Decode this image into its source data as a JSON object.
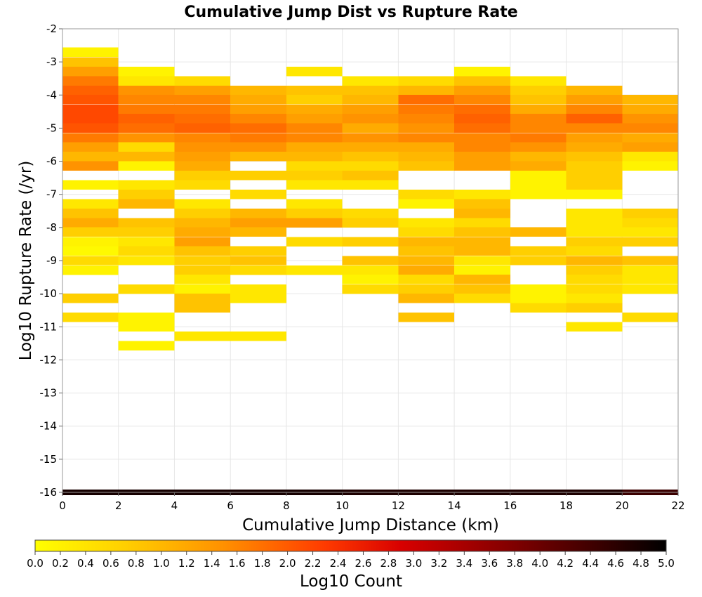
{
  "chart_data": {
    "type": "heatmap",
    "title": "Cumulative Jump Dist vs Rupture Rate",
    "xlabel": "Cumulative Jump Distance (km)",
    "ylabel": "Log10 Rupture Rate (/yr)",
    "xlim": [
      0,
      22
    ],
    "ylim": [
      -16,
      -2
    ],
    "x_ticks": [
      "0",
      "2",
      "4",
      "6",
      "8",
      "10",
      "12",
      "14",
      "16",
      "18",
      "20",
      "22"
    ],
    "y_ticks": [
      "-2",
      "-3",
      "-4",
      "-5",
      "-6",
      "-7",
      "-8",
      "-9",
      "-10",
      "-11",
      "-12",
      "-13",
      "-14",
      "-15",
      "-16"
    ],
    "x_bin_width": 2,
    "y_bin_height": 0.286,
    "grid": true,
    "colorbar": {
      "label": "Log10 Count",
      "range": [
        0,
        5
      ],
      "ticks": [
        "0.0",
        "0.2",
        "0.4",
        "0.6",
        "0.8",
        "1.0",
        "1.2",
        "1.4",
        "1.6",
        "1.8",
        "2.0",
        "2.2",
        "2.4",
        "2.6",
        "2.8",
        "3.0",
        "3.2",
        "3.4",
        "3.6",
        "3.8",
        "4.0",
        "4.2",
        "4.4",
        "4.6",
        "4.8",
        "5.0"
      ],
      "colors": [
        "#ffff00",
        "#ff9b00",
        "#ff3300",
        "#d40000",
        "#8a0000",
        "#3d0000",
        "#000000"
      ],
      "placement": "bottom"
    },
    "columns": [
      {
        "x": 0,
        "cells": [
          {
            "y": -2.71,
            "v": 0.1
          },
          {
            "y": -3.0,
            "v": 0.5
          },
          {
            "y": -3.29,
            "v": 0.8
          },
          {
            "y": -3.57,
            "v": 1.1
          },
          {
            "y": -3.86,
            "v": 1.3
          },
          {
            "y": -4.14,
            "v": 1.4
          },
          {
            "y": -4.43,
            "v": 1.5
          },
          {
            "y": -4.71,
            "v": 1.5
          },
          {
            "y": -5.0,
            "v": 1.4
          },
          {
            "y": -5.29,
            "v": 1.1
          },
          {
            "y": -5.57,
            "v": 0.8
          },
          {
            "y": -5.86,
            "v": 0.6
          },
          {
            "y": -6.14,
            "v": 0.9
          },
          {
            "y": -6.71,
            "v": 0.1
          },
          {
            "y": -7.29,
            "v": 0.2
          },
          {
            "y": -7.57,
            "v": 0.5
          },
          {
            "y": -7.86,
            "v": 0.7
          },
          {
            "y": -8.14,
            "v": 0.4
          },
          {
            "y": -8.43,
            "v": 0.1
          },
          {
            "y": -8.71,
            "v": 0.05
          },
          {
            "y": -9.0,
            "v": 0.3
          },
          {
            "y": -9.29,
            "v": 0.1
          },
          {
            "y": -10.14,
            "v": 0.4
          },
          {
            "y": -10.71,
            "v": 0.3
          }
        ]
      },
      {
        "x": 2,
        "cells": [
          {
            "y": -3.29,
            "v": 0.1
          },
          {
            "y": -3.57,
            "v": 0.2
          },
          {
            "y": -3.86,
            "v": 0.9
          },
          {
            "y": -4.14,
            "v": 1.0
          },
          {
            "y": -4.43,
            "v": 1.1
          },
          {
            "y": -4.71,
            "v": 1.3
          },
          {
            "y": -5.0,
            "v": 1.2
          },
          {
            "y": -5.29,
            "v": 0.9
          },
          {
            "y": -5.57,
            "v": 0.3
          },
          {
            "y": -5.86,
            "v": 0.6
          },
          {
            "y": -6.14,
            "v": 0.1
          },
          {
            "y": -6.71,
            "v": 0.2
          },
          {
            "y": -7.0,
            "v": 0.4
          },
          {
            "y": -7.29,
            "v": 0.6
          },
          {
            "y": -7.86,
            "v": 0.5
          },
          {
            "y": -8.14,
            "v": 0.4
          },
          {
            "y": -8.43,
            "v": 0.2
          },
          {
            "y": -8.71,
            "v": 0.3
          },
          {
            "y": -9.0,
            "v": 0.2
          },
          {
            "y": -9.86,
            "v": 0.3
          },
          {
            "y": -10.71,
            "v": 0.1
          },
          {
            "y": -11.0,
            "v": 0.1
          },
          {
            "y": -11.57,
            "v": 0.1
          }
        ]
      },
      {
        "x": 4,
        "cells": [
          {
            "y": -3.57,
            "v": 0.3
          },
          {
            "y": -3.86,
            "v": 0.8
          },
          {
            "y": -4.14,
            "v": 1.0
          },
          {
            "y": -4.43,
            "v": 1.1
          },
          {
            "y": -4.71,
            "v": 1.2
          },
          {
            "y": -5.0,
            "v": 1.3
          },
          {
            "y": -5.29,
            "v": 1.0
          },
          {
            "y": -5.57,
            "v": 0.9
          },
          {
            "y": -5.86,
            "v": 0.8
          },
          {
            "y": -6.14,
            "v": 0.7
          },
          {
            "y": -6.43,
            "v": 0.4
          },
          {
            "y": -6.71,
            "v": 0.3
          },
          {
            "y": -7.29,
            "v": 0.2
          },
          {
            "y": -7.57,
            "v": 0.4
          },
          {
            "y": -7.86,
            "v": 0.6
          },
          {
            "y": -8.14,
            "v": 0.7
          },
          {
            "y": -8.43,
            "v": 0.8
          },
          {
            "y": -8.71,
            "v": 0.5
          },
          {
            "y": -9.0,
            "v": 0.4
          },
          {
            "y": -9.29,
            "v": 0.4
          },
          {
            "y": -9.57,
            "v": 0.2
          },
          {
            "y": -9.86,
            "v": 0.1
          },
          {
            "y": -10.14,
            "v": 0.5
          },
          {
            "y": -10.43,
            "v": 0.5
          },
          {
            "y": -11.29,
            "v": 0.2
          }
        ]
      },
      {
        "x": 6,
        "cells": [
          {
            "y": -3.86,
            "v": 0.6
          },
          {
            "y": -4.14,
            "v": 0.7
          },
          {
            "y": -4.43,
            "v": 0.8
          },
          {
            "y": -4.71,
            "v": 1.0
          },
          {
            "y": -5.0,
            "v": 1.2
          },
          {
            "y": -5.29,
            "v": 1.1
          },
          {
            "y": -5.57,
            "v": 0.9
          },
          {
            "y": -5.86,
            "v": 0.6
          },
          {
            "y": -6.43,
            "v": 0.4
          },
          {
            "y": -7.0,
            "v": 0.3
          },
          {
            "y": -7.57,
            "v": 0.6
          },
          {
            "y": -7.86,
            "v": 0.8
          },
          {
            "y": -8.14,
            "v": 0.6
          },
          {
            "y": -8.71,
            "v": 0.4
          },
          {
            "y": -9.0,
            "v": 0.5
          },
          {
            "y": -9.29,
            "v": 0.3
          },
          {
            "y": -9.86,
            "v": 0.2
          },
          {
            "y": -10.14,
            "v": 0.2
          },
          {
            "y": -11.29,
            "v": 0.2
          }
        ]
      },
      {
        "x": 8,
        "cells": [
          {
            "y": -3.29,
            "v": 0.2
          },
          {
            "y": -3.86,
            "v": 0.5
          },
          {
            "y": -4.14,
            "v": 0.4
          },
          {
            "y": -4.43,
            "v": 0.7
          },
          {
            "y": -4.71,
            "v": 0.8
          },
          {
            "y": -5.0,
            "v": 1.0
          },
          {
            "y": -5.29,
            "v": 1.0
          },
          {
            "y": -5.57,
            "v": 0.7
          },
          {
            "y": -5.86,
            "v": 0.6
          },
          {
            "y": -6.14,
            "v": 0.3
          },
          {
            "y": -6.43,
            "v": 0.4
          },
          {
            "y": -6.71,
            "v": 0.2
          },
          {
            "y": -7.29,
            "v": 0.2
          },
          {
            "y": -7.57,
            "v": 0.4
          },
          {
            "y": -7.86,
            "v": 0.8
          },
          {
            "y": -8.43,
            "v": 0.3
          },
          {
            "y": -9.29,
            "v": 0.2
          }
        ]
      },
      {
        "x": 10,
        "cells": [
          {
            "y": -3.57,
            "v": 0.2
          },
          {
            "y": -3.86,
            "v": 0.5
          },
          {
            "y": -4.14,
            "v": 0.6
          },
          {
            "y": -4.43,
            "v": 0.8
          },
          {
            "y": -4.71,
            "v": 0.9
          },
          {
            "y": -5.0,
            "v": 0.7
          },
          {
            "y": -5.29,
            "v": 0.9
          },
          {
            "y": -5.57,
            "v": 0.7
          },
          {
            "y": -5.86,
            "v": 0.5
          },
          {
            "y": -6.14,
            "v": 0.3
          },
          {
            "y": -6.43,
            "v": 0.5
          },
          {
            "y": -6.71,
            "v": 0.2
          },
          {
            "y": -7.57,
            "v": 0.3
          },
          {
            "y": -7.86,
            "v": 0.4
          },
          {
            "y": -8.43,
            "v": 0.4
          },
          {
            "y": -9.0,
            "v": 0.5
          },
          {
            "y": -9.29,
            "v": 0.2
          },
          {
            "y": -9.57,
            "v": 0.1
          },
          {
            "y": -9.86,
            "v": 0.3
          }
        ]
      },
      {
        "x": 12,
        "cells": [
          {
            "y": -3.57,
            "v": 0.3
          },
          {
            "y": -3.86,
            "v": 0.6
          },
          {
            "y": -4.14,
            "v": 1.2
          },
          {
            "y": -4.43,
            "v": 1.1
          },
          {
            "y": -4.71,
            "v": 1.0
          },
          {
            "y": -5.0,
            "v": 0.9
          },
          {
            "y": -5.29,
            "v": 1.0
          },
          {
            "y": -5.57,
            "v": 0.7
          },
          {
            "y": -5.86,
            "v": 0.6
          },
          {
            "y": -6.14,
            "v": 0.5
          },
          {
            "y": -7.0,
            "v": 0.3
          },
          {
            "y": -7.29,
            "v": 0.1
          },
          {
            "y": -7.86,
            "v": 0.2
          },
          {
            "y": -8.14,
            "v": 0.3
          },
          {
            "y": -8.43,
            "v": 0.6
          },
          {
            "y": -8.71,
            "v": 0.5
          },
          {
            "y": -9.0,
            "v": 0.6
          },
          {
            "y": -9.29,
            "v": 0.7
          },
          {
            "y": -9.57,
            "v": 0.3
          },
          {
            "y": -9.86,
            "v": 0.4
          },
          {
            "y": -10.14,
            "v": 0.6
          },
          {
            "y": -10.71,
            "v": 0.5
          }
        ]
      },
      {
        "x": 14,
        "cells": [
          {
            "y": -3.29,
            "v": 0.1
          },
          {
            "y": -3.57,
            "v": 0.5
          },
          {
            "y": -3.86,
            "v": 0.8
          },
          {
            "y": -4.14,
            "v": 1.0
          },
          {
            "y": -4.43,
            "v": 1.2
          },
          {
            "y": -4.71,
            "v": 1.3
          },
          {
            "y": -5.0,
            "v": 1.2
          },
          {
            "y": -5.29,
            "v": 1.0
          },
          {
            "y": -5.57,
            "v": 1.0
          },
          {
            "y": -5.86,
            "v": 0.8
          },
          {
            "y": -6.14,
            "v": 0.8
          },
          {
            "y": -7.0,
            "v": 0.2
          },
          {
            "y": -7.29,
            "v": 0.5
          },
          {
            "y": -7.57,
            "v": 0.6
          },
          {
            "y": -7.86,
            "v": 0.3
          },
          {
            "y": -8.14,
            "v": 0.5
          },
          {
            "y": -8.43,
            "v": 0.6
          },
          {
            "y": -8.71,
            "v": 0.6
          },
          {
            "y": -9.0,
            "v": 0.2
          },
          {
            "y": -9.29,
            "v": 0.1
          },
          {
            "y": -9.57,
            "v": 0.6
          },
          {
            "y": -9.86,
            "v": 0.5
          },
          {
            "y": -10.14,
            "v": 0.3
          }
        ]
      },
      {
        "x": 16,
        "cells": [
          {
            "y": -3.57,
            "v": 0.2
          },
          {
            "y": -3.86,
            "v": 0.4
          },
          {
            "y": -4.14,
            "v": 0.5
          },
          {
            "y": -4.43,
            "v": 0.7
          },
          {
            "y": -4.71,
            "v": 1.0
          },
          {
            "y": -5.0,
            "v": 1.0
          },
          {
            "y": -5.29,
            "v": 1.1
          },
          {
            "y": -5.57,
            "v": 0.9
          },
          {
            "y": -5.86,
            "v": 0.6
          },
          {
            "y": -6.14,
            "v": 0.7
          },
          {
            "y": -6.43,
            "v": 0.1
          },
          {
            "y": -6.71,
            "v": 0.1
          },
          {
            "y": -7.0,
            "v": 0.1
          },
          {
            "y": -8.14,
            "v": 0.6
          },
          {
            "y": -8.71,
            "v": 0.4
          },
          {
            "y": -9.0,
            "v": 0.4
          },
          {
            "y": -9.86,
            "v": 0.1
          },
          {
            "y": -10.14,
            "v": 0.1
          },
          {
            "y": -10.43,
            "v": 0.3
          }
        ]
      },
      {
        "x": 18,
        "cells": [
          {
            "y": -3.86,
            "v": 0.6
          },
          {
            "y": -4.14,
            "v": 0.8
          },
          {
            "y": -4.43,
            "v": 1.0
          },
          {
            "y": -4.71,
            "v": 1.3
          },
          {
            "y": -5.0,
            "v": 1.0
          },
          {
            "y": -5.29,
            "v": 0.8
          },
          {
            "y": -5.57,
            "v": 0.7
          },
          {
            "y": -5.86,
            "v": 0.5
          },
          {
            "y": -6.14,
            "v": 0.4
          },
          {
            "y": -6.43,
            "v": 0.4
          },
          {
            "y": -6.71,
            "v": 0.4
          },
          {
            "y": -7.0,
            "v": 0.1
          },
          {
            "y": -7.57,
            "v": 0.2
          },
          {
            "y": -7.86,
            "v": 0.2
          },
          {
            "y": -8.14,
            "v": 0.2
          },
          {
            "y": -8.43,
            "v": 0.4
          },
          {
            "y": -8.71,
            "v": 0.3
          },
          {
            "y": -9.0,
            "v": 0.6
          },
          {
            "y": -9.29,
            "v": 0.4
          },
          {
            "y": -9.57,
            "v": 0.3
          },
          {
            "y": -9.86,
            "v": 0.3
          },
          {
            "y": -10.14,
            "v": 0.2
          },
          {
            "y": -10.43,
            "v": 0.4
          },
          {
            "y": -11.0,
            "v": 0.2
          }
        ]
      },
      {
        "x": 20,
        "cells": [
          {
            "y": -4.14,
            "v": 0.6
          },
          {
            "y": -4.43,
            "v": 0.7
          },
          {
            "y": -4.71,
            "v": 0.9
          },
          {
            "y": -5.0,
            "v": 1.0
          },
          {
            "y": -5.29,
            "v": 0.7
          },
          {
            "y": -5.57,
            "v": 0.8
          },
          {
            "y": -5.86,
            "v": 0.2
          },
          {
            "y": -6.14,
            "v": 0.1
          },
          {
            "y": -7.57,
            "v": 0.4
          },
          {
            "y": -7.86,
            "v": 0.3
          },
          {
            "y": -8.14,
            "v": 0.2
          },
          {
            "y": -8.43,
            "v": 0.4
          },
          {
            "y": -9.0,
            "v": 0.5
          },
          {
            "y": -9.29,
            "v": 0.2
          },
          {
            "y": -9.57,
            "v": 0.2
          },
          {
            "y": -9.86,
            "v": 0.2
          },
          {
            "y": -10.71,
            "v": 0.3
          }
        ]
      }
    ],
    "bottom_row": {
      "y": -16,
      "values": [
        4.7,
        4.7,
        4.7,
        4.7,
        4.7,
        4.6,
        4.6,
        4.6,
        4.6,
        4.6,
        4.2
      ]
    }
  }
}
